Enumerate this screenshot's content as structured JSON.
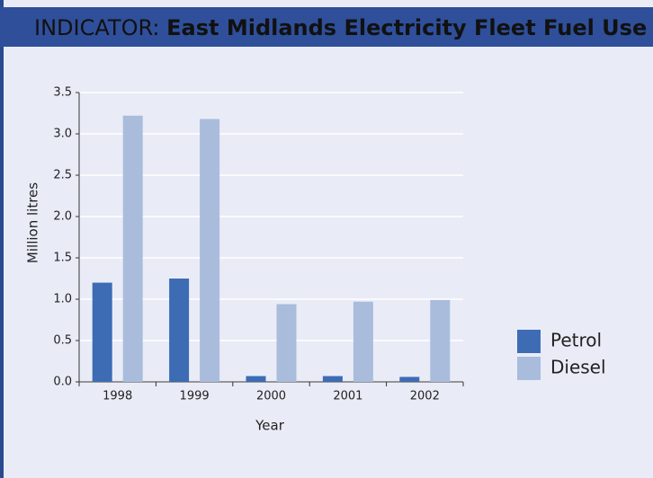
{
  "chart_data": {
    "type": "bar",
    "title_label": "INDICATOR:",
    "title": "East Midlands Electricity Fleet Fuel Use",
    "x_label": "Year",
    "y_label": "Million litres",
    "categories": [
      "1998",
      "1999",
      "2000",
      "2001",
      "2002"
    ],
    "series": [
      {
        "name": "Petrol",
        "color": "#3d6cb5",
        "values": [
          1.2,
          1.25,
          0.07,
          0.07,
          0.06
        ]
      },
      {
        "name": "Diesel",
        "color": "#a9bcdc",
        "values": [
          3.22,
          3.18,
          0.94,
          0.97,
          0.99
        ]
      }
    ],
    "ylim": [
      0,
      3.5
    ],
    "yticks": [
      {
        "value": 0,
        "label": "0.0"
      },
      0.5,
      {
        "value": 1,
        "label": "1.0"
      },
      1.5,
      {
        "value": 2,
        "label": "2.0"
      },
      2.5,
      {
        "value": 3,
        "label": "3.0"
      },
      3.5
    ],
    "grid": true,
    "legend": "right"
  }
}
